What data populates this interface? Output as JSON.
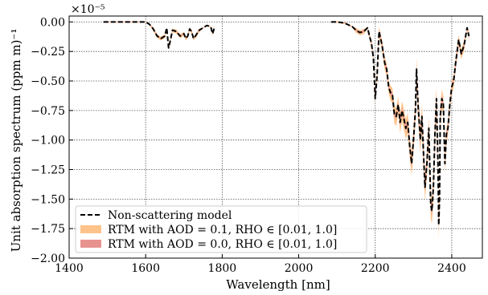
{
  "chart_data": {
    "type": "line",
    "xlabel": "Wavelength [nm]",
    "ylabel": "Unit absorption spectrum (ppm m)⁻¹",
    "scale_label": "×10⁻⁵",
    "xlim": [
      1400,
      2480
    ],
    "ylim": [
      -2.0,
      0.05
    ],
    "x_ticks": [
      1400,
      1600,
      1800,
      2000,
      2200,
      2400
    ],
    "x_tick_labels": [
      "1400",
      "1600",
      "1800",
      "2000",
      "2200",
      "2400"
    ],
    "y_ticks": [
      0.0,
      -0.25,
      -0.5,
      -0.75,
      -1.0,
      -1.25,
      -1.5,
      -1.75,
      -2.0
    ],
    "y_tick_labels": [
      "0.00",
      "−0.25",
      "−0.50",
      "−0.75",
      "−1.00",
      "−1.25",
      "−1.50",
      "−1.75",
      "−2.00"
    ],
    "grid": true,
    "legend_position": "lower-left",
    "colors": {
      "non_scattering": "#000000",
      "aod_01": "#fec38a",
      "aod_00": "#e89290",
      "grid": "#555555"
    },
    "series": [
      {
        "name": "Non-scattering model",
        "style": "dashed",
        "segments": [
          {
            "x": [
              1490,
              1520,
              1560,
              1590,
              1600,
              1610,
              1620,
              1630,
              1640,
              1650,
              1655,
              1660,
              1665,
              1670,
              1680,
              1690,
              1700,
              1705,
              1710,
              1715,
              1720,
              1725,
              1730,
              1740,
              1750,
              1760,
              1770,
              1775,
              1780
            ],
            "y": [
              0.0,
              0.0,
              0.0,
              0.0,
              0.0,
              -0.02,
              -0.06,
              -0.12,
              -0.14,
              -0.12,
              -0.05,
              -0.22,
              -0.15,
              -0.07,
              -0.08,
              -0.12,
              -0.1,
              -0.14,
              -0.12,
              -0.06,
              -0.08,
              -0.14,
              -0.12,
              -0.07,
              -0.05,
              -0.03,
              -0.04,
              -0.1,
              -0.04
            ]
          },
          {
            "x": [
              2085,
              2100,
              2120,
              2140,
              2150,
              2160,
              2170,
              2180,
              2185,
              2190,
              2195,
              2198,
              2200,
              2205,
              2210,
              2218,
              2225,
              2230,
              2235,
              2240,
              2245,
              2250,
              2255,
              2260,
              2265,
              2270,
              2275,
              2280,
              2285,
              2290,
              2295,
              2300,
              2305,
              2308,
              2312,
              2318,
              2322,
              2326,
              2330,
              2335,
              2340,
              2345,
              2348,
              2352,
              2356,
              2360,
              2364,
              2366,
              2368,
              2370,
              2374,
              2378,
              2382,
              2386,
              2390,
              2395,
              2400,
              2405,
              2410,
              2418,
              2425,
              2432,
              2440,
              2445
            ],
            "y": [
              0.0,
              0.0,
              -0.01,
              -0.04,
              -0.07,
              -0.09,
              -0.08,
              -0.05,
              -0.12,
              -0.18,
              -0.3,
              -0.5,
              -0.65,
              -0.45,
              -0.08,
              -0.2,
              -0.35,
              -0.4,
              -0.55,
              -0.6,
              -0.62,
              -0.78,
              -0.8,
              -0.7,
              -0.85,
              -0.75,
              -0.82,
              -0.9,
              -0.85,
              -1.05,
              -1.2,
              -1.0,
              -0.75,
              -0.4,
              -0.7,
              -1.0,
              -0.8,
              -1.1,
              -1.4,
              -1.2,
              -0.9,
              -1.55,
              -1.6,
              -1.4,
              -0.95,
              -0.65,
              -1.2,
              -1.72,
              -1.5,
              -0.8,
              -0.65,
              -0.7,
              -1.2,
              -0.95,
              -0.9,
              -0.7,
              -0.55,
              -0.5,
              -0.35,
              -0.15,
              -0.27,
              -0.2,
              -0.05,
              -0.12
            ]
          }
        ]
      },
      {
        "name": "RTM with AOD = 0.1, RHO ∈ [0.01, 1.0]",
        "style": "band",
        "band_width": [
          0.02,
          0.02,
          0.02,
          0.02,
          0.02,
          0.02,
          0.03,
          0.03,
          0.04,
          0.04,
          0.05,
          0.05,
          0.06,
          0.07,
          0.07,
          0.08,
          0.08,
          0.08,
          0.08,
          0.09,
          0.09,
          0.1,
          0.1,
          0.1,
          0.1,
          0.1,
          0.1,
          0.1,
          0.1,
          0.1,
          0.09,
          0.08,
          0.07,
          0.06,
          0.06,
          0.05,
          0.05,
          0.04,
          0.04,
          0.04
        ]
      },
      {
        "name": "RTM with AOD = 0.0, RHO ∈ [0.01, 1.0]",
        "style": "band"
      }
    ]
  }
}
